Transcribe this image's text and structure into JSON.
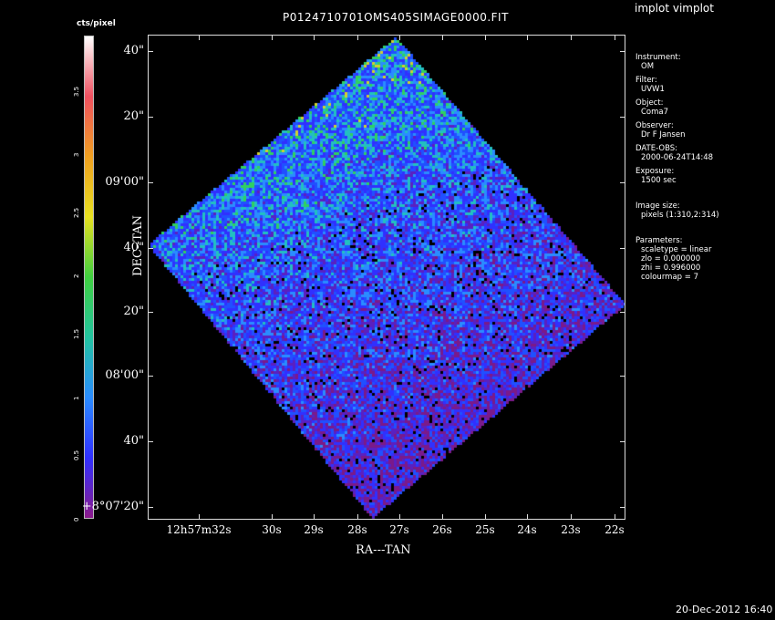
{
  "app_title": "implot vimplot",
  "plot_title": "P0124710701OMS405SIMAGE0000.FIT",
  "footer_timestamp": "20-Dec-2012 16:40",
  "colorbar": {
    "unit": "cts/pixel",
    "ticks": [
      "0",
      "0.5",
      "1",
      "1.5",
      "2",
      "2.5",
      "3",
      "3.5"
    ],
    "colormap": [
      "#8b1a8b",
      "#3030ff",
      "#2a8cff",
      "#22c4a0",
      "#40d040",
      "#e8e020",
      "#f0a020",
      "#f05060",
      "#ffffff"
    ]
  },
  "axes": {
    "xlabel": "RA---TAN",
    "ylabel": "DEC--TAN",
    "x_ticks": [
      "12h57m32s",
      "30s",
      "29s",
      "28s",
      "27s",
      "26s",
      "25s",
      "24s",
      "23s",
      "22s"
    ],
    "y_ticks": [
      "40\"",
      "20\"",
      "09'00\"",
      "40\"",
      "20\"",
      "08'00\"",
      "40\"",
      "+8°07'20\""
    ]
  },
  "info": {
    "instrument_label": "Instrument:",
    "instrument": "OM",
    "filter_label": "Filter:",
    "filter": "UVW1",
    "object_label": "Object:",
    "object": "Coma7",
    "observer_label": "Observer:",
    "observer": "Dr F Jansen",
    "date_label": "DATE-OBS:",
    "date": "2000-06-24T14:48",
    "exposure_label": "Exposure:",
    "exposure": "1500 sec",
    "size_label": "Image size:",
    "size": "pixels (1:310,2:314)",
    "params_label": "Parameters:",
    "params": [
      "scaletype = linear",
      "zlo = 0.000000",
      "zhi = 0.996000",
      "colourmap =   7"
    ]
  }
}
